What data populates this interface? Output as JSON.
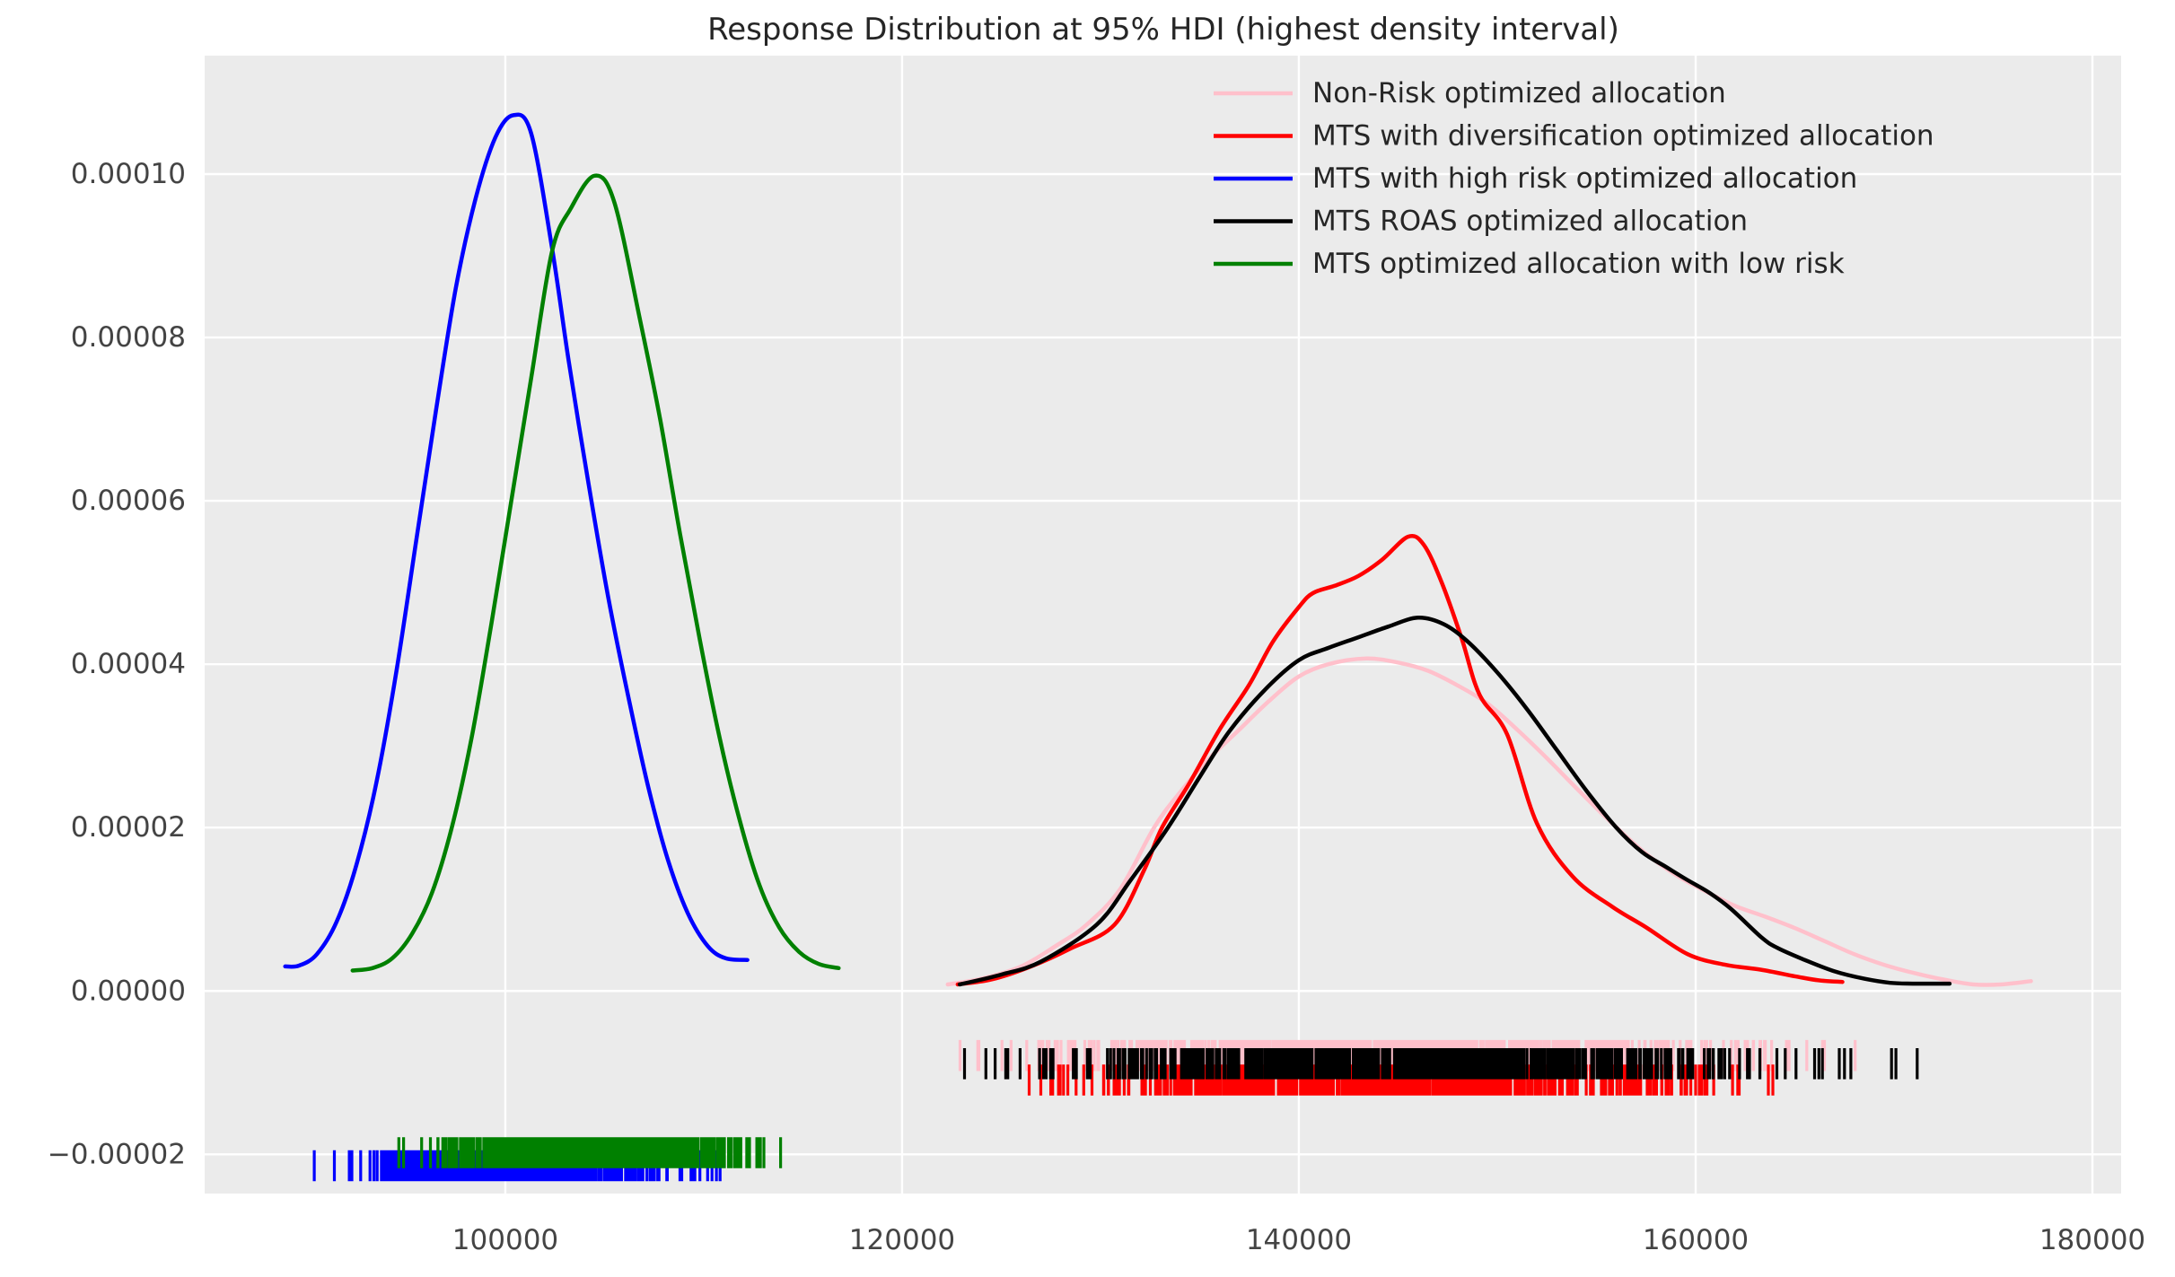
{
  "chart_data": {
    "type": "line",
    "title": "Response Distribution at 95% HDI (highest density interval)",
    "style": {
      "figure_background": "#FFFFFF",
      "plot_background": "#EBEBEB",
      "grid_color": "#FFFFFF",
      "grid_on": true,
      "tick_label_color": "#444444",
      "title_color": "#262626"
    },
    "x_axis": {
      "min": 84843,
      "max": 181448,
      "ticks": [
        {
          "value": 100000,
          "label": "100000"
        },
        {
          "value": 120000,
          "label": "120000"
        },
        {
          "value": 140000,
          "label": "140000"
        },
        {
          "value": 160000,
          "label": "160000"
        },
        {
          "value": 180000,
          "label": "180000"
        }
      ]
    },
    "y_axis": {
      "min": -2.48e-05,
      "max": 0.0001145,
      "ticks": [
        {
          "value": 0.0001,
          "label": "0.00010"
        },
        {
          "value": 8e-05,
          "label": "0.00008"
        },
        {
          "value": 6e-05,
          "label": "0.00006"
        },
        {
          "value": 4e-05,
          "label": "0.00004"
        },
        {
          "value": 2e-05,
          "label": "0.00002"
        },
        {
          "value": 0.0,
          "label": "0.00000"
        },
        {
          "value": -2e-05,
          "label": "−0.00002"
        }
      ]
    },
    "legend": {
      "position": "upper right",
      "frame": false
    },
    "series": [
      {
        "name": "Non-Risk optimized allocation",
        "color": "#FFC0CB",
        "points": [
          [
            122300,
            8e-07
          ],
          [
            124000,
            1.5e-06
          ],
          [
            126000,
            3e-06
          ],
          [
            127800,
            5.6e-06
          ],
          [
            129300,
            8.1e-06
          ],
          [
            131000,
            1.25e-05
          ],
          [
            132700,
            2e-05
          ],
          [
            134000,
            2.43e-05
          ],
          [
            135500,
            2.85e-05
          ],
          [
            137000,
            3.2e-05
          ],
          [
            138500,
            3.55e-05
          ],
          [
            140000,
            3.85e-05
          ],
          [
            141500,
            4e-05
          ],
          [
            143400,
            4.07e-05
          ],
          [
            145000,
            4.02e-05
          ],
          [
            146500,
            3.92e-05
          ],
          [
            148000,
            3.74e-05
          ],
          [
            149500,
            3.52e-05
          ],
          [
            151000,
            3.2e-05
          ],
          [
            152500,
            2.85e-05
          ],
          [
            154000,
            2.48e-05
          ],
          [
            155500,
            2.12e-05
          ],
          [
            157300,
            1.72e-05
          ],
          [
            159000,
            1.42e-05
          ],
          [
            160500,
            1.22e-05
          ],
          [
            162000,
            1.04e-05
          ],
          [
            163500,
            9.1e-06
          ],
          [
            165000,
            7.7e-06
          ],
          [
            166500,
            6.1e-06
          ],
          [
            168000,
            4.5e-06
          ],
          [
            169500,
            3.2e-06
          ],
          [
            171000,
            2.2e-06
          ],
          [
            172500,
            1.4e-06
          ],
          [
            174000,
            8e-07
          ],
          [
            175400,
            8e-07
          ],
          [
            176900,
            1.2e-06
          ]
        ]
      },
      {
        "name": "MTS with diversification optimized allocation",
        "color": "#FF0000",
        "points": [
          [
            122800,
            8e-07
          ],
          [
            124500,
            1.4e-06
          ],
          [
            126500,
            3e-06
          ],
          [
            128500,
            5.2e-06
          ],
          [
            130700,
            8.1e-06
          ],
          [
            132200,
            1.48e-05
          ],
          [
            133100,
            2e-05
          ],
          [
            134500,
            2.55e-05
          ],
          [
            136000,
            3.2e-05
          ],
          [
            137500,
            3.75e-05
          ],
          [
            138700,
            4.28e-05
          ],
          [
            140000,
            4.7e-05
          ],
          [
            140700,
            4.87e-05
          ],
          [
            141800,
            4.96e-05
          ],
          [
            143000,
            5.08e-05
          ],
          [
            144200,
            5.28e-05
          ],
          [
            145500,
            5.56e-05
          ],
          [
            146300,
            5.46e-05
          ],
          [
            147200,
            5e-05
          ],
          [
            148200,
            4.32e-05
          ],
          [
            149100,
            3.63e-05
          ],
          [
            150500,
            3.14e-05
          ],
          [
            152000,
            2.05e-05
          ],
          [
            153800,
            1.4e-05
          ],
          [
            155800,
            1.03e-05
          ],
          [
            157500,
            7.8e-06
          ],
          [
            159600,
            4.5e-06
          ],
          [
            161500,
            3.2e-06
          ],
          [
            163300,
            2.6e-06
          ],
          [
            165000,
            1.8e-06
          ],
          [
            166200,
            1.3e-06
          ],
          [
            167400,
            1.1e-06
          ]
        ]
      },
      {
        "name": "MTS with high risk optimized allocation",
        "color": "#0000FF",
        "points": [
          [
            88900,
            3e-06
          ],
          [
            89600,
            3.1e-06
          ],
          [
            90500,
            4.5e-06
          ],
          [
            91500,
            8.5e-06
          ],
          [
            92500,
            1.55e-05
          ],
          [
            93500,
            2.55e-05
          ],
          [
            94500,
            3.9e-05
          ],
          [
            95500,
            5.5e-05
          ],
          [
            96500,
            7.1e-05
          ],
          [
            97500,
            8.6e-05
          ],
          [
            98500,
            9.7e-05
          ],
          [
            99500,
            0.0001045
          ],
          [
            100400,
            0.0001072
          ],
          [
            101300,
            0.000105
          ],
          [
            102350,
            9.1e-05
          ],
          [
            103200,
            7.7e-05
          ],
          [
            104200,
            6.2e-05
          ],
          [
            105200,
            4.8e-05
          ],
          [
            106200,
            3.6e-05
          ],
          [
            107200,
            2.5e-05
          ],
          [
            108200,
            1.6e-05
          ],
          [
            109200,
            9.5e-06
          ],
          [
            110200,
            5.5e-06
          ],
          [
            111100,
            4e-06
          ],
          [
            112200,
            3.8e-06
          ]
        ]
      },
      {
        "name": "MTS ROAS optimized allocation",
        "color": "#000000",
        "points": [
          [
            122900,
            8e-07
          ],
          [
            125000,
            2e-06
          ],
          [
            127000,
            3.6e-06
          ],
          [
            129800,
            8.1e-06
          ],
          [
            131500,
            1.35e-05
          ],
          [
            133400,
            2e-05
          ],
          [
            135000,
            2.62e-05
          ],
          [
            136500,
            3.18e-05
          ],
          [
            138300,
            3.69e-05
          ],
          [
            140000,
            4.05e-05
          ],
          [
            141500,
            4.2e-05
          ],
          [
            143000,
            4.33e-05
          ],
          [
            144500,
            4.46e-05
          ],
          [
            146000,
            4.57e-05
          ],
          [
            147300,
            4.49e-05
          ],
          [
            148500,
            4.28e-05
          ],
          [
            150000,
            3.9e-05
          ],
          [
            151500,
            3.45e-05
          ],
          [
            153000,
            2.95e-05
          ],
          [
            154500,
            2.45e-05
          ],
          [
            156000,
            2e-05
          ],
          [
            157300,
            1.7e-05
          ],
          [
            158500,
            1.52e-05
          ],
          [
            159500,
            1.37e-05
          ],
          [
            160700,
            1.2e-05
          ],
          [
            161800,
            1e-05
          ],
          [
            163300,
            6.6e-06
          ],
          [
            164100,
            5.3e-06
          ],
          [
            165500,
            3.8e-06
          ],
          [
            167000,
            2.4e-06
          ],
          [
            168500,
            1.5e-06
          ],
          [
            169800,
            1e-06
          ],
          [
            171000,
            9e-07
          ],
          [
            172800,
            9e-07
          ]
        ]
      },
      {
        "name": "MTS optimized allocation with low risk",
        "color": "#008000",
        "points": [
          [
            92300,
            2.5e-06
          ],
          [
            93300,
            2.8e-06
          ],
          [
            94300,
            4e-06
          ],
          [
            95300,
            7e-06
          ],
          [
            96300,
            1.2e-05
          ],
          [
            97300,
            2e-05
          ],
          [
            98300,
            3.1e-05
          ],
          [
            99300,
            4.5e-05
          ],
          [
            100300,
            6e-05
          ],
          [
            101300,
            7.5e-05
          ],
          [
            102350,
            9.05e-05
          ],
          [
            103300,
            9.58e-05
          ],
          [
            104500,
            9.98e-05
          ],
          [
            105500,
            9.65e-05
          ],
          [
            106800,
            8.2e-05
          ],
          [
            107800,
            7e-05
          ],
          [
            108800,
            5.6e-05
          ],
          [
            109800,
            4.3e-05
          ],
          [
            110800,
            3.1e-05
          ],
          [
            111800,
            2.1e-05
          ],
          [
            112800,
            1.3e-05
          ],
          [
            113800,
            7.8e-06
          ],
          [
            114800,
            4.8e-06
          ],
          [
            115800,
            3.3e-06
          ],
          [
            116800,
            2.8e-06
          ]
        ]
      }
    ],
    "rugs": [
      {
        "series": "Non-Risk optimized allocation",
        "color": "#FFC0CB",
        "x_min": 122400,
        "x_max": 176900,
        "mean": 144500,
        "sd": 8600,
        "count": 700,
        "y_center": -7.9e-06,
        "half_height": 1.9e-06
      },
      {
        "series": "MTS with diversification optimized allocation",
        "color": "#FF0000",
        "x_min": 122900,
        "x_max": 167400,
        "mean": 144400,
        "sd": 7300,
        "count": 700,
        "y_center": -1.09e-05,
        "half_height": 1.9e-06
      },
      {
        "series": "MTS with high risk optimized allocation",
        "color": "#0000FF",
        "x_min": 88900,
        "x_max": 112100,
        "mean": 100300,
        "sd": 3500,
        "count": 600,
        "y_center": -2.14e-05,
        "half_height": 1.9e-06
      },
      {
        "series": "MTS ROAS optimized allocation",
        "color": "#000000",
        "x_min": 123000,
        "x_max": 172800,
        "mean": 145800,
        "sd": 8300,
        "count": 700,
        "y_center": -8.9e-06,
        "half_height": 1.9e-06
      },
      {
        "series": "MTS optimized allocation with low risk",
        "color": "#008000",
        "x_min": 92200,
        "x_max": 116700,
        "mean": 104500,
        "sd": 3700,
        "count": 600,
        "y_center": -1.98e-05,
        "half_height": 1.9e-06
      }
    ]
  }
}
